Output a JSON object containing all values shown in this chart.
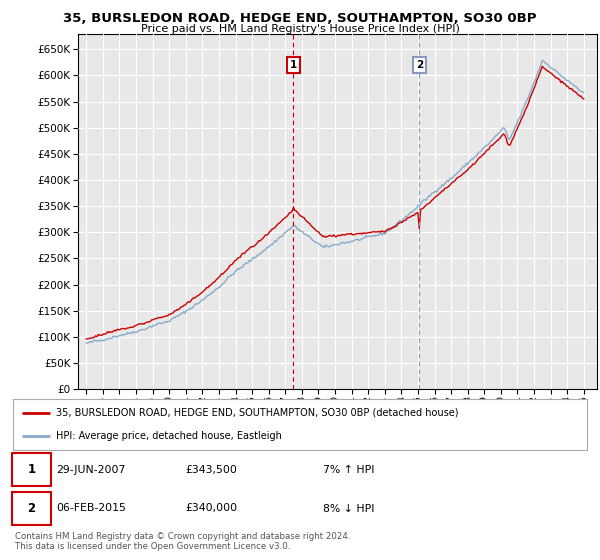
{
  "title": "35, BURSLEDON ROAD, HEDGE END, SOUTHAMPTON, SO30 0BP",
  "subtitle": "Price paid vs. HM Land Registry's House Price Index (HPI)",
  "ytick_values": [
    0,
    50000,
    100000,
    150000,
    200000,
    250000,
    300000,
    350000,
    400000,
    450000,
    500000,
    550000,
    600000,
    650000
  ],
  "ylim": [
    0,
    680000
  ],
  "xlim_left": 1994.5,
  "xlim_right": 2025.8,
  "background_color": "#ffffff",
  "plot_bg_color": "#e8e8e8",
  "grid_color": "#ffffff",
  "red_color": "#cc0000",
  "blue_color": "#88aacc",
  "sale1_x": 2007.49,
  "sale2_x": 2015.09,
  "legend_line1": "35, BURSLEDON ROAD, HEDGE END, SOUTHAMPTON, SO30 0BP (detached house)",
  "legend_line2": "HPI: Average price, detached house, Eastleigh",
  "table_row1_date": "29-JUN-2007",
  "table_row1_price": "£343,500",
  "table_row1_hpi": "7% ↑ HPI",
  "table_row2_date": "06-FEB-2015",
  "table_row2_price": "£340,000",
  "table_row2_hpi": "8% ↓ HPI",
  "footnote": "Contains HM Land Registry data © Crown copyright and database right 2024.\nThis data is licensed under the Open Government Licence v3.0.",
  "hpi_base": 88000,
  "red_base": 95000,
  "marker_y": 620000
}
